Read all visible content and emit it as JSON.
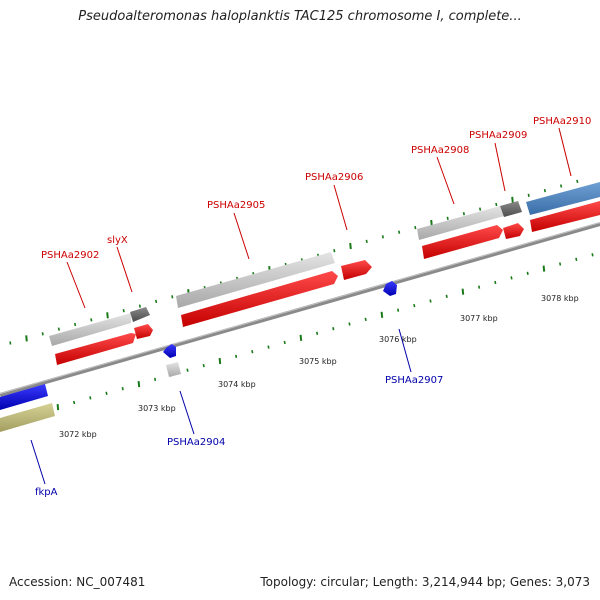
{
  "header": {
    "title": "Pseudoalteromonas haloplanktis TAC125 chromosome I, complete..."
  },
  "footer": {
    "accession": "Accession: NC_007481",
    "summary": "Topology: circular; Length: 3,214,944 bp; Genes: 3,073"
  },
  "colors": {
    "forward_label": "#cc0000",
    "reverse_label": "#0000aa",
    "cds_red": "#ff0000",
    "cds_blue": "#0000ff",
    "gene_gray": "#c8c8c8",
    "gene_dark": "#6e6e6e",
    "steelblue": "#4f86c0",
    "olive": "#c2bd7e",
    "tick_green": "#1a7a1a",
    "backbone": "#888888"
  },
  "scale_labels": [
    "3072 kbp",
    "3073 kbp",
    "3074 kbp",
    "3075 kbp",
    "3076 kbp",
    "3077 kbp",
    "3078 kbp"
  ],
  "gene_labels": {
    "forward": [
      "PSHAa2902",
      "slyX",
      "PSHAa2905",
      "PSHAa2906",
      "PSHAa2908",
      "PSHAa2909",
      "PSHAa2910"
    ],
    "reverse": [
      "fkpA",
      "PSHAa2904",
      "PSHAa2907"
    ]
  }
}
